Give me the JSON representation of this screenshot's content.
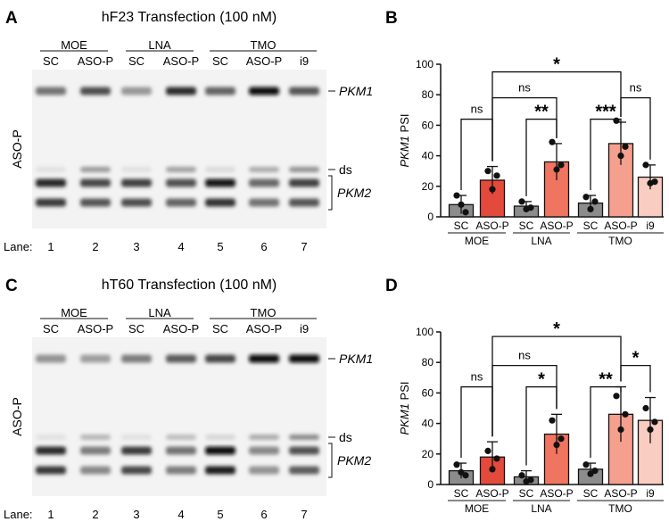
{
  "panels": [
    {
      "letter": "A",
      "title": "hF23 Transfection (100 nM)",
      "groups": [
        {
          "label": "MOE",
          "lanes": [
            "SC",
            "ASO-P"
          ]
        },
        {
          "label": "LNA",
          "lanes": [
            "SC",
            "ASO-P"
          ]
        },
        {
          "label": "TMO",
          "lanes": [
            "SC",
            "ASO-P",
            "i9"
          ]
        }
      ],
      "side_label": "ASO-P",
      "band_labels": {
        "pkm1": "PKM1",
        "ds": "ds",
        "pkm2": "PKM2"
      },
      "lane_prefix": "Lane:",
      "lane_numbers": [
        "1",
        "2",
        "3",
        "4",
        "5",
        "6",
        "7"
      ],
      "band_intensity": {
        "pkm1": [
          0.55,
          0.72,
          0.38,
          0.88,
          0.62,
          1.0,
          0.68
        ],
        "ds": [
          0.05,
          0.38,
          0.05,
          0.35,
          0.08,
          0.3,
          0.42
        ],
        "pkm2a": [
          0.9,
          0.75,
          0.78,
          0.7,
          0.98,
          0.6,
          0.78
        ],
        "pkm2b": [
          0.8,
          0.68,
          0.72,
          0.62,
          0.85,
          0.55,
          0.68
        ]
      }
    },
    {
      "letter": "C",
      "title": "hT60 Transfection (100 nM)",
      "groups": [
        {
          "label": "MOE",
          "lanes": [
            "SC",
            "ASO-P"
          ]
        },
        {
          "label": "LNA",
          "lanes": [
            "SC",
            "ASO-P"
          ]
        },
        {
          "label": "TMO",
          "lanes": [
            "SC",
            "ASO-P",
            "i9"
          ]
        }
      ],
      "side_label": "ASO-P",
      "band_labels": {
        "pkm1": "PKM1",
        "ds": "ds",
        "pkm2": "PKM2"
      },
      "lane_prefix": "Lane:",
      "lane_numbers": [
        "1",
        "2",
        "3",
        "4",
        "5",
        "6",
        "7"
      ],
      "band_intensity": {
        "pkm1": [
          0.4,
          0.35,
          0.5,
          0.65,
          0.75,
          1.0,
          1.0
        ],
        "ds": [
          0.05,
          0.25,
          0.05,
          0.22,
          0.1,
          0.3,
          0.45
        ],
        "pkm2a": [
          0.88,
          0.5,
          0.8,
          0.55,
          1.0,
          0.45,
          0.7
        ],
        "pkm2b": [
          0.82,
          0.45,
          0.75,
          0.5,
          0.95,
          0.4,
          0.65
        ]
      }
    }
  ],
  "chart_data": [
    {
      "letter": "B",
      "type": "bar",
      "ylabel_italic": "PKM1",
      "ylabel_rest": " PSI",
      "ylim": [
        0,
        100
      ],
      "yticks": [
        0,
        20,
        40,
        60,
        80,
        100
      ],
      "categories": [
        "SC",
        "ASO-P",
        "SC",
        "ASO-P",
        "SC",
        "ASO-P",
        "i9"
      ],
      "groups": [
        {
          "label": "MOE",
          "indices": [
            0,
            1
          ]
        },
        {
          "label": "LNA",
          "indices": [
            2,
            3
          ]
        },
        {
          "label": "TMO",
          "indices": [
            4,
            5,
            6
          ]
        }
      ],
      "values": [
        8,
        24,
        7,
        36,
        9,
        48,
        26
      ],
      "errors": [
        6,
        9,
        3,
        12,
        5,
        14,
        8
      ],
      "points": [
        [
          14,
          3,
          8
        ],
        [
          30,
          27,
          18
        ],
        [
          10,
          6,
          5
        ],
        [
          49,
          34,
          31
        ],
        [
          13,
          10,
          5
        ],
        [
          63,
          46,
          40
        ],
        [
          34,
          23,
          22
        ]
      ],
      "colors": [
        "#8c8c8c",
        "#e34a3b",
        "#8c8c8c",
        "#f07560",
        "#8c8c8c",
        "#f5a08e",
        "#f9cdc1"
      ],
      "comparisons": [
        {
          "from": 1,
          "to": 5,
          "y": 95,
          "label": "*"
        },
        {
          "from": 1,
          "to": 3,
          "y": 78,
          "label": "ns"
        },
        {
          "from": 5,
          "to": 6,
          "y": 78,
          "label": "ns"
        },
        {
          "from": 0,
          "to": 1,
          "y": 64,
          "label": "ns"
        },
        {
          "from": 2,
          "to": 3,
          "y": 64,
          "label": "**"
        },
        {
          "from": 4,
          "to": 5,
          "y": 64,
          "label": "***"
        }
      ]
    },
    {
      "letter": "D",
      "type": "bar",
      "ylabel_italic": "PKM1",
      "ylabel_rest": " PSI",
      "ylim": [
        0,
        100
      ],
      "yticks": [
        0,
        20,
        40,
        60,
        80,
        100
      ],
      "categories": [
        "SC",
        "ASO-P",
        "SC",
        "ASO-P",
        "SC",
        "ASO-P",
        "i9"
      ],
      "groups": [
        {
          "label": "MOE",
          "indices": [
            0,
            1
          ]
        },
        {
          "label": "LNA",
          "indices": [
            2,
            3
          ]
        },
        {
          "label": "TMO",
          "indices": [
            4,
            5,
            6
          ]
        }
      ],
      "values": [
        9,
        18,
        5,
        33,
        10,
        46,
        42
      ],
      "errors": [
        5,
        10,
        4,
        13,
        4,
        18,
        15
      ],
      "points": [
        [
          13,
          6,
          8
        ],
        [
          22,
          17,
          10
        ],
        [
          6,
          3,
          2
        ],
        [
          42,
          30,
          26
        ],
        [
          13,
          9,
          7
        ],
        [
          58,
          46,
          36
        ],
        [
          50,
          41,
          36
        ]
      ],
      "colors": [
        "#8c8c8c",
        "#e34a3b",
        "#8c8c8c",
        "#f07560",
        "#8c8c8c",
        "#f5a08e",
        "#f9cdc1"
      ],
      "comparisons": [
        {
          "from": 1,
          "to": 5,
          "y": 97,
          "label": "*"
        },
        {
          "from": 1,
          "to": 3,
          "y": 78,
          "label": "ns"
        },
        {
          "from": 5,
          "to": 6,
          "y": 78,
          "label": "*"
        },
        {
          "from": 0,
          "to": 1,
          "y": 64,
          "label": "ns"
        },
        {
          "from": 2,
          "to": 3,
          "y": 64,
          "label": "*"
        },
        {
          "from": 4,
          "to": 5,
          "y": 64,
          "label": "**"
        }
      ]
    }
  ]
}
